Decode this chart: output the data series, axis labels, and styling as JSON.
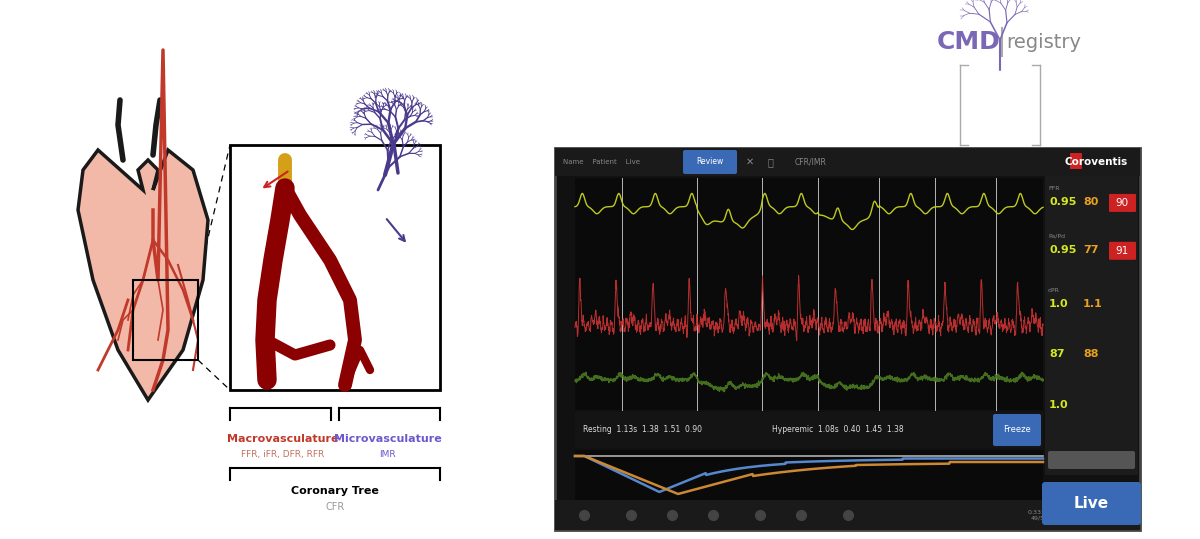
{
  "bg_color": "#ffffff",
  "cmd_text": "CMD",
  "registry_text": "registry",
  "cmd_color": "#7b68b5",
  "registry_color": "#888888",
  "macro_label": "Macrovasculature",
  "micro_label": "Microvasculature",
  "macro_color": "#c0392b",
  "micro_color": "#6a5acd",
  "macro_sub": "FFR, iFR, DFR, RFR",
  "micro_sub": "IMR",
  "coronary_tree_label": "Coronary Tree",
  "cfr_label": "CFR",
  "monitor_bg": "#111111",
  "monitor_title": "Coroventis",
  "resting_str": "Resting  1.13s  1.38  1.51  0.90",
  "hyperemic_str": "Hyperemic  1.08s  0.40  1.45  1.38",
  "freeze_label": "Freeze",
  "live_label": "Live",
  "cfr_imr_text": "CFR/IMR",
  "heart_color": "#f2b8a8",
  "heart_edge": "#1a1a1a",
  "vessel_color": "#c0392b",
  "macro_vessel_color": "#8B0000",
  "micro_vessel_color": "#4a3a8c",
  "yellow_vessel": "#d4a017",
  "sidebar_ffr": "0.95",
  "sidebar_80": "80",
  "sidebar_90": "90",
  "sidebar_papd": "0.95",
  "sidebar_77": "77",
  "sidebar_91": "91",
  "sidebar_dpr": "1.0",
  "sidebar_dpr2": "1.1",
  "sidebar_hr1": "87",
  "sidebar_hr2": "88",
  "sidebar_imr": "1.0",
  "green_color": "#c8d420",
  "green_dark": "#4a7a20",
  "red_wave": "#cc3333",
  "blue_cfr": "#5588cc",
  "orange_cfr": "#cc8833"
}
